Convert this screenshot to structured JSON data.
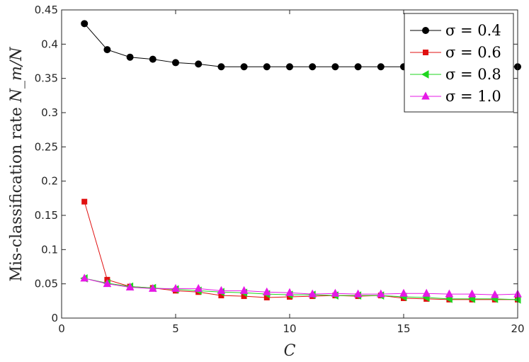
{
  "chart_data": {
    "type": "line",
    "title": "",
    "xlabel": "C",
    "ylabel_text": "Mis-classification rate",
    "ylabel_math": "N_m/N",
    "xlim": [
      0,
      20
    ],
    "ylim": [
      0,
      0.45
    ],
    "xticks": [
      0,
      5,
      10,
      15,
      20
    ],
    "yticks": [
      0,
      0.05,
      0.1,
      0.15,
      0.2,
      0.25,
      0.3,
      0.35,
      0.4,
      0.45
    ],
    "ytick_labels": [
      "0",
      "0.05",
      "0.1",
      "0.15",
      "0.2",
      "0.25",
      "0.3",
      "0.35",
      "0.4",
      "0.45"
    ],
    "grid": false,
    "legend_position": "top-right",
    "x": [
      1,
      2,
      3,
      4,
      5,
      6,
      7,
      8,
      9,
      10,
      11,
      12,
      13,
      14,
      15,
      16,
      17,
      18,
      19,
      20
    ],
    "series": [
      {
        "name": "σ = 0.4",
        "color": "#000000",
        "marker": "circle",
        "values": [
          0.43,
          0.392,
          0.381,
          0.378,
          0.373,
          0.371,
          0.367,
          0.367,
          0.367,
          0.367,
          0.367,
          0.367,
          0.367,
          0.367,
          0.367,
          0.367,
          0.367,
          0.367,
          0.367,
          0.367
        ]
      },
      {
        "name": "σ = 0.6",
        "color": "#e01010",
        "marker": "square",
        "values": [
          0.17,
          0.056,
          0.046,
          0.044,
          0.04,
          0.038,
          0.033,
          0.032,
          0.03,
          0.031,
          0.032,
          0.033,
          0.032,
          0.033,
          0.029,
          0.028,
          0.027,
          0.027,
          0.027,
          0.027
        ]
      },
      {
        "name": "σ = 0.8",
        "color": "#1fd61f",
        "marker": "triangle-left",
        "values": [
          0.058,
          0.051,
          0.046,
          0.044,
          0.042,
          0.04,
          0.038,
          0.037,
          0.035,
          0.034,
          0.034,
          0.033,
          0.033,
          0.033,
          0.031,
          0.03,
          0.028,
          0.028,
          0.028,
          0.027
        ]
      },
      {
        "name": "σ = 1.0",
        "color": "#e619e6",
        "marker": "triangle-up",
        "values": [
          0.058,
          0.05,
          0.045,
          0.043,
          0.043,
          0.043,
          0.04,
          0.04,
          0.038,
          0.037,
          0.035,
          0.036,
          0.035,
          0.035,
          0.036,
          0.036,
          0.035,
          0.035,
          0.034,
          0.035
        ]
      }
    ]
  }
}
